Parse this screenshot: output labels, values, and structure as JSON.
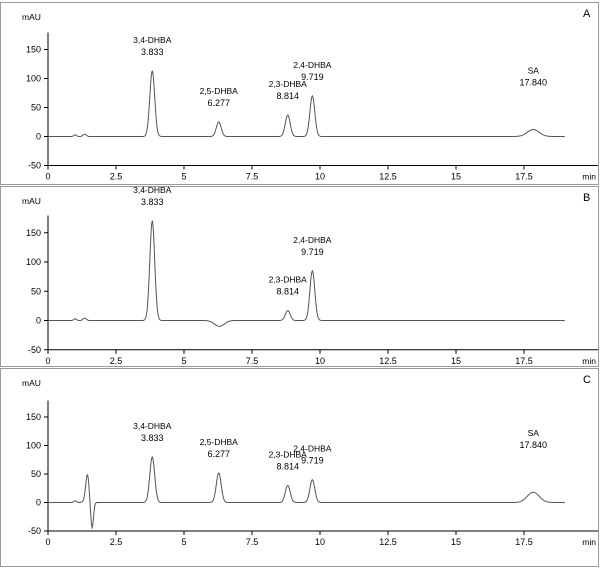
{
  "chart_data": [
    {
      "type": "line",
      "panel_label": "A",
      "ylabel": "mAU",
      "xlabel": "min",
      "xlim": [
        0,
        20
      ],
      "ylim": [
        -50,
        200
      ],
      "xticks": [
        0,
        2.5,
        5,
        7.5,
        10,
        12.5,
        15,
        17.5
      ],
      "xtick_labels": [
        "0",
        "2.5",
        "5",
        "7.5",
        "10",
        "12.5",
        "15",
        "17.5"
      ],
      "yticks": [
        -50,
        0,
        50,
        100,
        150
      ],
      "ytick_labels": [
        "-50",
        "0",
        "50",
        "100",
        "150"
      ],
      "peaks": [
        {
          "name": "3,4-DHBA",
          "rt": 3.833,
          "rt_label": "3.833",
          "height": 113
        },
        {
          "name": "2,5-DHBA",
          "rt": 6.277,
          "rt_label": "6.277",
          "height": 25
        },
        {
          "name": "2,3-DHBA",
          "rt": 8.814,
          "rt_label": "8.814",
          "height": 37
        },
        {
          "name": "2,4-DHBA",
          "rt": 9.719,
          "rt_label": "9.719",
          "height": 70
        },
        {
          "name": "SA",
          "rt": 17.84,
          "rt_label": "17.840",
          "height": 12
        }
      ]
    },
    {
      "type": "line",
      "panel_label": "B",
      "ylabel": "mAU",
      "xlabel": "min",
      "xlim": [
        0,
        20
      ],
      "ylim": [
        -50,
        200
      ],
      "xticks": [
        0,
        2.5,
        5,
        7.5,
        10,
        12.5,
        15,
        17.5
      ],
      "xtick_labels": [
        "0",
        "2.5",
        "5",
        "7.5",
        "10",
        "12.5",
        "15",
        "17.5"
      ],
      "yticks": [
        -50,
        0,
        50,
        100,
        150
      ],
      "ytick_labels": [
        "-50",
        "0",
        "50",
        "100",
        "150"
      ],
      "peaks": [
        {
          "name": "3,4-DHBA",
          "rt": 3.833,
          "rt_label": "3.833",
          "height": 170
        },
        {
          "name": "2,3-DHBA",
          "rt": 8.814,
          "rt_label": "8.814",
          "height": 17
        },
        {
          "name": "2,4-DHBA",
          "rt": 9.719,
          "rt_label": "9.719",
          "height": 85
        }
      ]
    },
    {
      "type": "line",
      "panel_label": "C",
      "ylabel": "mAU",
      "xlabel": "min",
      "xlim": [
        0,
        20
      ],
      "ylim": [
        -50,
        200
      ],
      "xticks": [
        0,
        2.5,
        5,
        7.5,
        10,
        12.5,
        15,
        17.5
      ],
      "xtick_labels": [
        "0",
        "2.5",
        "5",
        "7.5",
        "10",
        "12.5",
        "15",
        "17.5"
      ],
      "yticks": [
        -50,
        0,
        50,
        100,
        150
      ],
      "ytick_labels": [
        "-50",
        "0",
        "50",
        "100",
        "150"
      ],
      "peaks": [
        {
          "name": "3,4-DHBA",
          "rt": 3.833,
          "rt_label": "3.833",
          "height": 80
        },
        {
          "name": "2,5-DHBA",
          "rt": 6.277,
          "rt_label": "6.277",
          "height": 52
        },
        {
          "name": "2,3-DHBA",
          "rt": 8.814,
          "rt_label": "8.814",
          "height": 30
        },
        {
          "name": "2,4-DHBA",
          "rt": 9.719,
          "rt_label": "9.719",
          "height": 40
        },
        {
          "name": "SA",
          "rt": 17.84,
          "rt_label": "17.840",
          "height": 18
        }
      ]
    }
  ]
}
